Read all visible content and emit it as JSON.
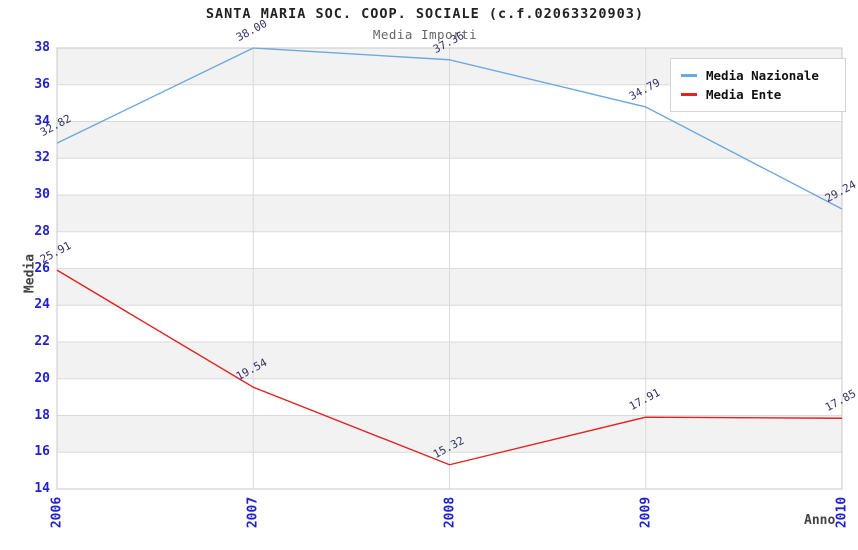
{
  "title": "SANTA MARIA SOC. COOP. SOCIALE (c.f.02063320903)",
  "subtitle": "Media Importi",
  "chart_data": {
    "type": "line",
    "x": [
      "2006",
      "2007",
      "2008",
      "2009",
      "2010"
    ],
    "series": [
      {
        "name": "Media Nazionale",
        "color": "#6FA8DC",
        "values": [
          32.82,
          38.0,
          37.36,
          34.79,
          29.24
        ]
      },
      {
        "name": "Media Ente",
        "color": "#E32222",
        "values": [
          25.91,
          19.54,
          15.32,
          17.91,
          17.85
        ]
      }
    ],
    "xlabel": "Anno",
    "ylabel": "Media",
    "ylim": [
      14,
      38
    ],
    "ytick_step": 2,
    "grid": true,
    "legend_position": "top-right",
    "band_color": "#f2f2f2",
    "gridline_color": "#dadada",
    "border_color": "#c8c8c8",
    "tick_label_color": "#2222cc",
    "data_label_color": "#333366",
    "value_label_format": "2-decimals"
  }
}
